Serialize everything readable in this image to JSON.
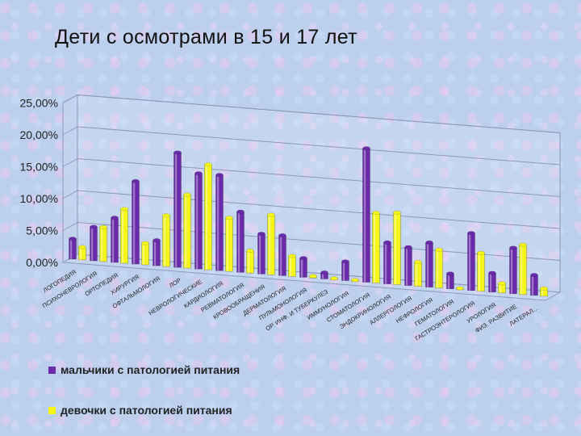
{
  "chart_data": {
    "type": "bar",
    "title": "Дети с осмотрами в 15 и 17 лет",
    "ylim": [
      0,
      25
    ],
    "yticks": [
      "0,00%",
      "5,00%",
      "10,00%",
      "15,00%",
      "20,00%",
      "25,00%"
    ],
    "grid": true,
    "legend_position": "bottom",
    "colors": {
      "boys": "#6a2bab",
      "girls": "#f5f51a"
    },
    "categories": [
      "логопедия",
      "психоневрология",
      "ортопедия",
      "хирургия",
      "офтальмология",
      "лор",
      "неврологические",
      "кардиология",
      "ревматология",
      "кровообращения",
      "дерматология",
      "пульмонология",
      "ор. инф. и туберкулез",
      "иммунология",
      "стоматология",
      "эндокринология",
      "аллергология",
      "нефрология",
      "гематология",
      "гастроэнтерология",
      "урология",
      "физ. развитие",
      "латерал..."
    ],
    "series": [
      {
        "name": "мальчики с патологией питания",
        "values": [
          3.2,
          5.3,
          7.0,
          13.0,
          4.0,
          18.0,
          15.0,
          15.0,
          9.5,
          6.3,
          6.3,
          3.0,
          1.0,
          3.0,
          21.0,
          6.5,
          6.0,
          7.0,
          2.4,
          9.0,
          3.0,
          7.2,
          3.2
        ]
      },
      {
        "name": "девочки с патологией питания",
        "values": [
          2.0,
          5.4,
          8.5,
          3.4,
          8.0,
          11.5,
          16.5,
          8.4,
          3.5,
          9.4,
          3.2,
          0.3,
          0.2,
          0.2,
          11.0,
          11.3,
          3.8,
          6.0,
          0.0,
          6.0,
          1.5,
          7.8,
          1.2
        ]
      }
    ]
  }
}
